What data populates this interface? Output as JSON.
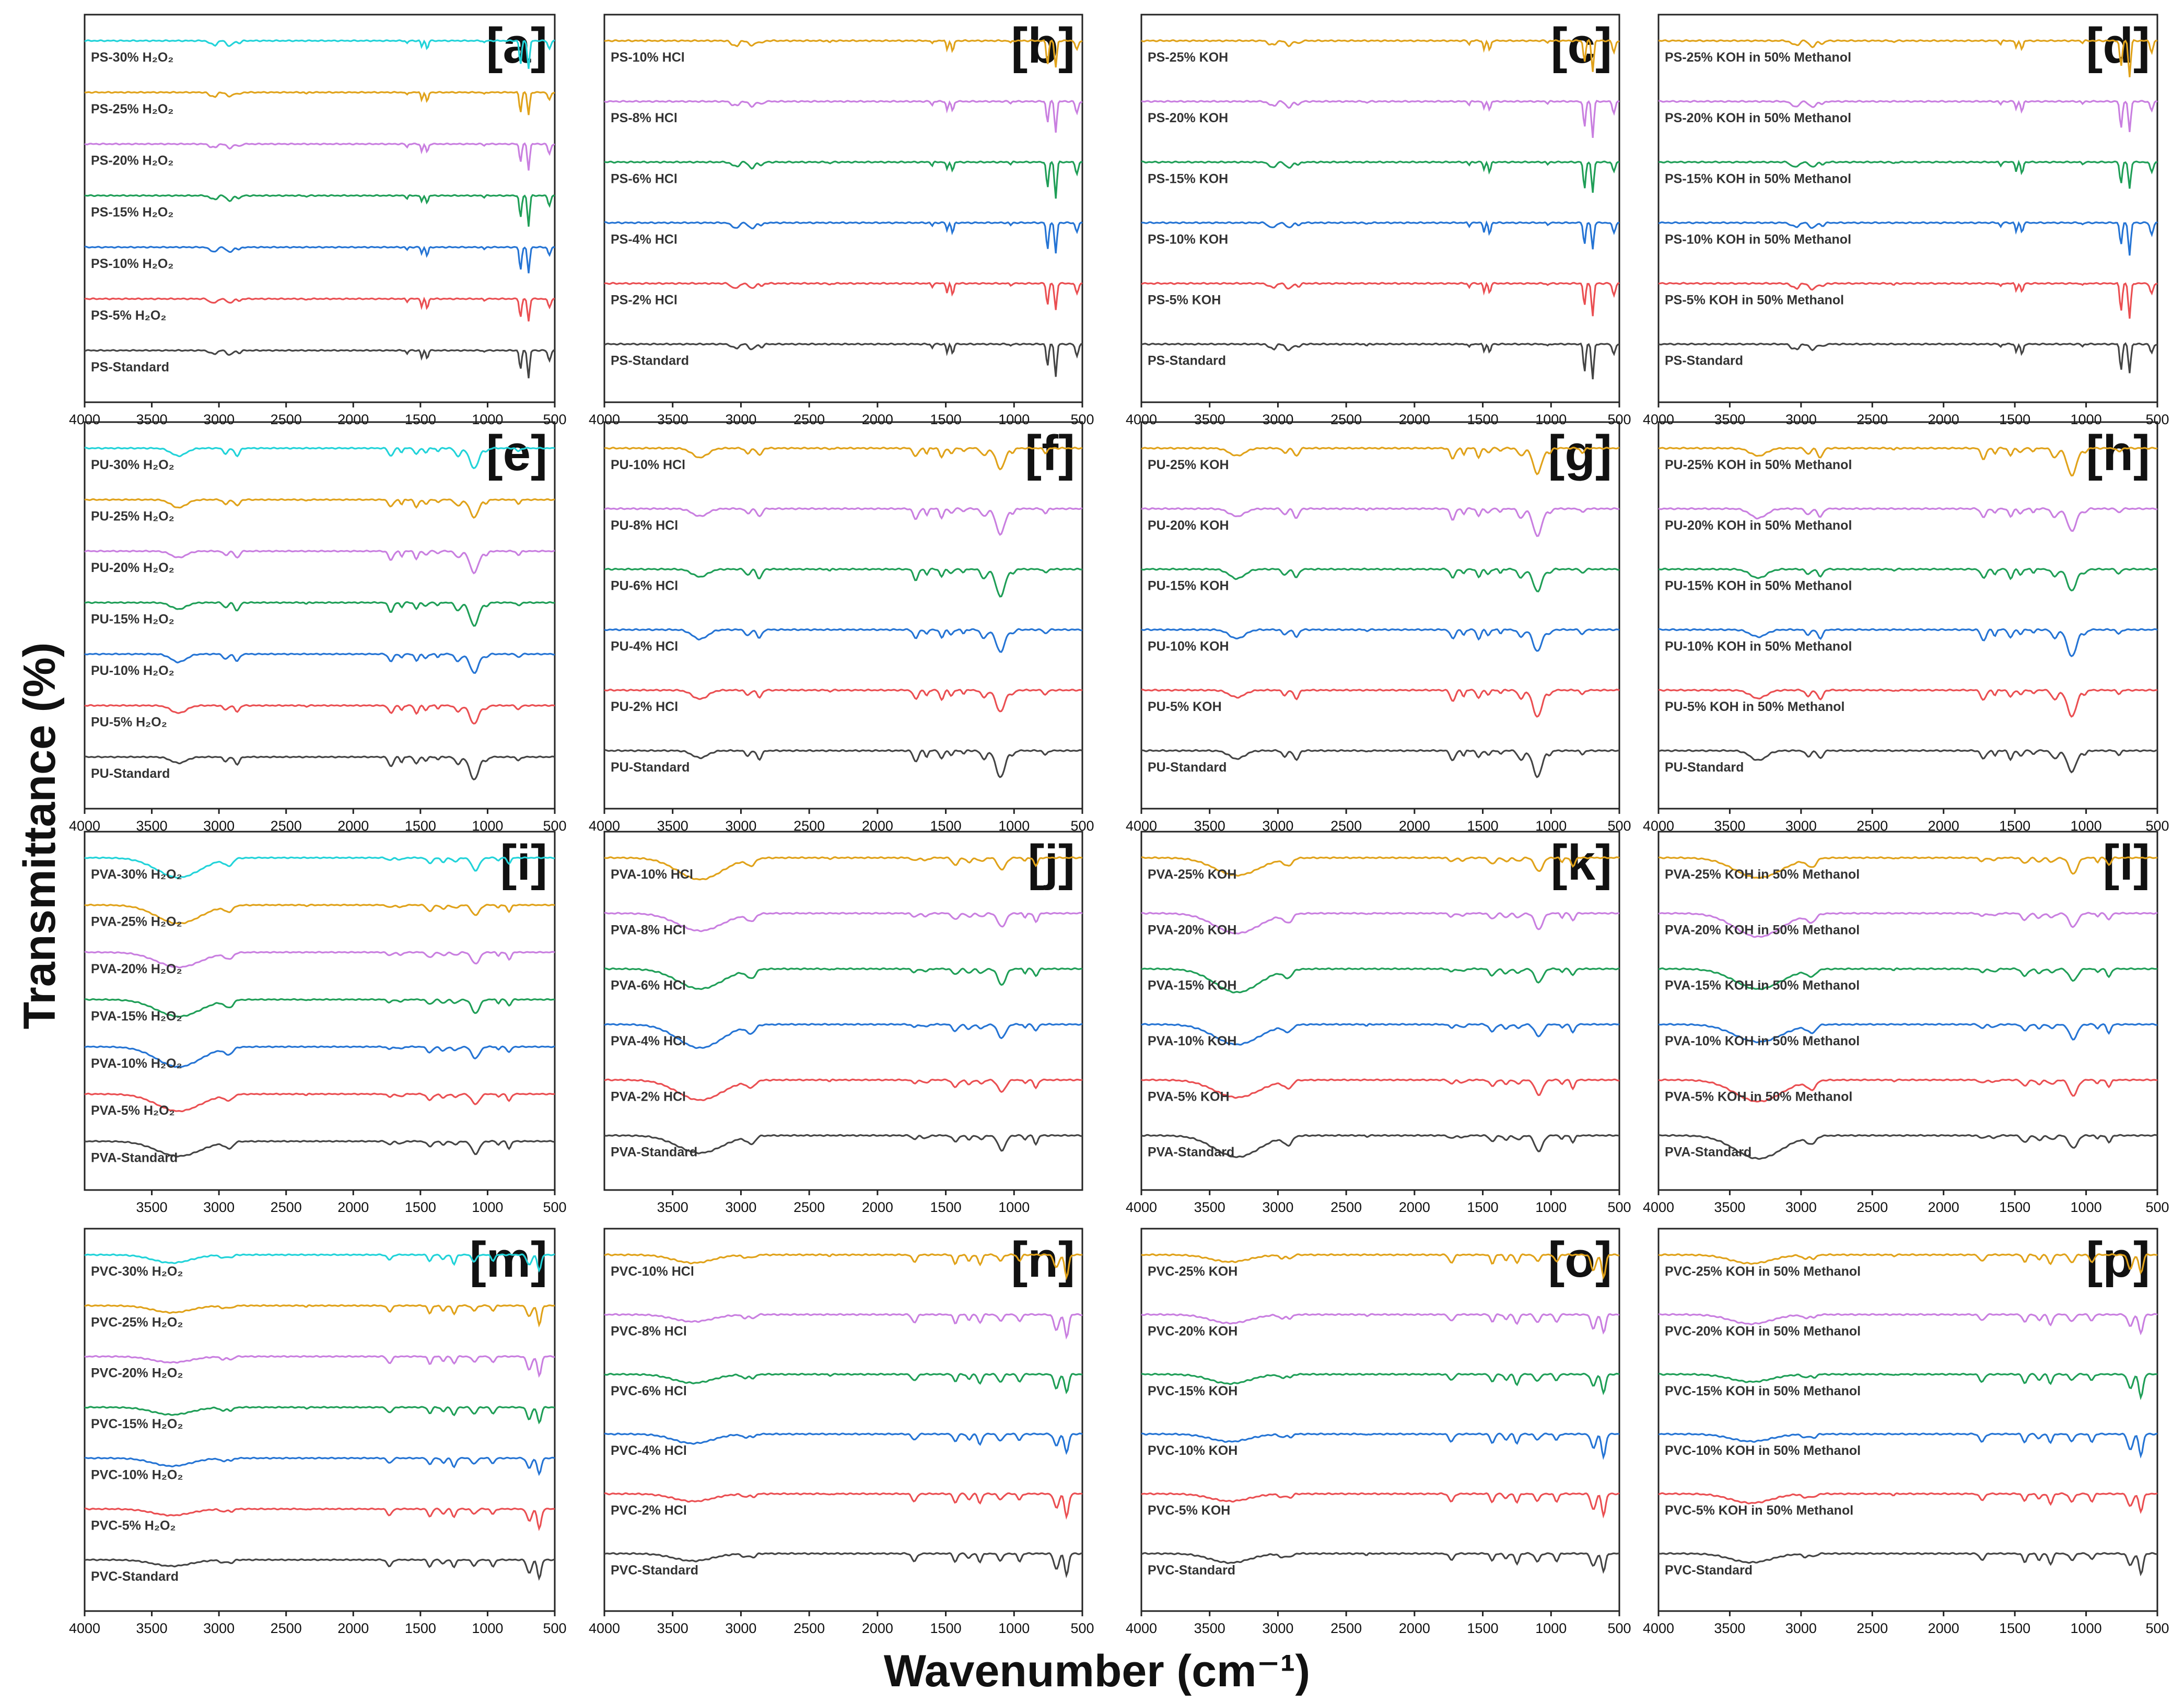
{
  "figure": {
    "y_axis_label": "Transmittance (%)",
    "x_axis_label": "Wavenumber (cm⁻¹)"
  },
  "colors": {
    "30": "#22d3d9",
    "25": "#e0a21a",
    "20": "#c97fe0",
    "15": "#1f9e57",
    "10": "#2574d4",
    "5": "#ea4f52",
    "std": "#444444"
  },
  "chart_data": [
    {
      "type": "line",
      "panel": "[a]",
      "polymer": "PS",
      "treatment": "H2O2",
      "xlim": [
        4000,
        500
      ],
      "x_ticks": [
        "4000",
        "3500",
        "3000",
        "2500",
        "2000",
        "1500",
        "1000",
        "500"
      ],
      "series": [
        {
          "name": "PS-30% H₂O₂",
          "key": "30"
        },
        {
          "name": "PS-25% H₂O₂",
          "key": "25"
        },
        {
          "name": "PS-20% H₂O₂",
          "key": "20"
        },
        {
          "name": "PS-15% H₂O₂",
          "key": "15"
        },
        {
          "name": "PS-10% H₂O₂",
          "key": "10"
        },
        {
          "name": "PS-5% H₂O₂",
          "key": "5"
        },
        {
          "name": "PS-Standard",
          "key": "std"
        }
      ]
    },
    {
      "type": "line",
      "panel": "[b]",
      "polymer": "PS",
      "treatment": "HCl",
      "xlim": [
        4000,
        500
      ],
      "x_ticks": [
        "4000",
        "3500",
        "3000",
        "2500",
        "2000",
        "1500",
        "1000",
        "500"
      ],
      "series": [
        {
          "name": "PS-10% HCl",
          "key": "25"
        },
        {
          "name": "PS-8% HCl",
          "key": "20"
        },
        {
          "name": "PS-6% HCl",
          "key": "15"
        },
        {
          "name": "PS-4% HCl",
          "key": "10"
        },
        {
          "name": "PS-2% HCl",
          "key": "5"
        },
        {
          "name": "PS-Standard",
          "key": "std"
        }
      ]
    },
    {
      "type": "line",
      "panel": "[c]",
      "polymer": "PS",
      "treatment": "KOH",
      "xlim": [
        4000,
        500
      ],
      "x_ticks": [
        "4000",
        "3500",
        "3000",
        "2500",
        "2000",
        "1500",
        "1000",
        "500"
      ],
      "series": [
        {
          "name": "PS-25% KOH",
          "key": "25"
        },
        {
          "name": "PS-20% KOH",
          "key": "20"
        },
        {
          "name": "PS-15% KOH",
          "key": "15"
        },
        {
          "name": "PS-10% KOH",
          "key": "10"
        },
        {
          "name": "PS-5% KOH",
          "key": "5"
        },
        {
          "name": "PS-Standard",
          "key": "std"
        }
      ]
    },
    {
      "type": "line",
      "panel": "[d]",
      "polymer": "PS",
      "treatment": "KOH-MeOH",
      "xlim": [
        4000,
        500
      ],
      "x_ticks": [
        "4000",
        "3500",
        "3000",
        "2500",
        "2000",
        "1500",
        "1000",
        "500"
      ],
      "series": [
        {
          "name": "PS-25% KOH in 50% Methanol",
          "key": "25"
        },
        {
          "name": "PS-20% KOH in 50% Methanol",
          "key": "20"
        },
        {
          "name": "PS-15% KOH in 50% Methanol",
          "key": "15"
        },
        {
          "name": "PS-10% KOH in 50% Methanol",
          "key": "10"
        },
        {
          "name": "PS-5% KOH in 50% Methanol",
          "key": "5"
        },
        {
          "name": "PS-Standard",
          "key": "std"
        }
      ]
    },
    {
      "type": "line",
      "panel": "[e]",
      "polymer": "PU",
      "treatment": "H2O2",
      "xlim": [
        4000,
        500
      ],
      "x_ticks": [
        "4000",
        "3500",
        "3000",
        "2500",
        "2000",
        "1500",
        "1000",
        "500"
      ],
      "series": [
        {
          "name": "PU-30% H₂O₂",
          "key": "30"
        },
        {
          "name": "PU-25% H₂O₂",
          "key": "25"
        },
        {
          "name": "PU-20% H₂O₂",
          "key": "20"
        },
        {
          "name": "PU-15% H₂O₂",
          "key": "15"
        },
        {
          "name": "PU-10% H₂O₂",
          "key": "10"
        },
        {
          "name": "PU-5% H₂O₂",
          "key": "5"
        },
        {
          "name": "PU-Standard",
          "key": "std"
        }
      ]
    },
    {
      "type": "line",
      "panel": "[f]",
      "polymer": "PU",
      "treatment": "HCl",
      "xlim": [
        4000,
        500
      ],
      "x_ticks": [
        "4000",
        "3500",
        "3000",
        "2500",
        "2000",
        "1500",
        "1000",
        "500"
      ],
      "series": [
        {
          "name": "PU-10% HCl",
          "key": "25"
        },
        {
          "name": "PU-8% HCl",
          "key": "20"
        },
        {
          "name": "PU-6% HCl",
          "key": "15"
        },
        {
          "name": "PU-4% HCl",
          "key": "10"
        },
        {
          "name": "PU-2% HCl",
          "key": "5"
        },
        {
          "name": "PU-Standard",
          "key": "std"
        }
      ]
    },
    {
      "type": "line",
      "panel": "[g]",
      "polymer": "PU",
      "treatment": "KOH",
      "xlim": [
        4000,
        500
      ],
      "x_ticks": [
        "4000",
        "3500",
        "3000",
        "2500",
        "2000",
        "1500",
        "1000",
        "500"
      ],
      "series": [
        {
          "name": "PU-25% KOH",
          "key": "25"
        },
        {
          "name": "PU-20% KOH",
          "key": "20"
        },
        {
          "name": "PU-15% KOH",
          "key": "15"
        },
        {
          "name": "PU-10% KOH",
          "key": "10"
        },
        {
          "name": "PU-5% KOH",
          "key": "5"
        },
        {
          "name": "PU-Standard",
          "key": "std"
        }
      ]
    },
    {
      "type": "line",
      "panel": "[h]",
      "polymer": "PU",
      "treatment": "KOH-MeOH",
      "xlim": [
        4000,
        500
      ],
      "x_ticks": [
        "4000",
        "3500",
        "3000",
        "2500",
        "2000",
        "1500",
        "1000",
        "500"
      ],
      "series": [
        {
          "name": "PU-25% KOH in 50% Methanol",
          "key": "25"
        },
        {
          "name": "PU-20% KOH in 50% Methanol",
          "key": "20"
        },
        {
          "name": "PU-15% KOH in 50% Methanol",
          "key": "15"
        },
        {
          "name": "PU-10% KOH in 50% Methanol",
          "key": "10"
        },
        {
          "name": "PU-5% KOH in 50% Methanol",
          "key": "5"
        },
        {
          "name": "PU-Standard",
          "key": "std"
        }
      ]
    },
    {
      "type": "line",
      "panel": "[i]",
      "polymer": "PVA",
      "treatment": "H2O2",
      "xlim": [
        4000,
        500
      ],
      "x_ticks": [
        "3500",
        "3000",
        "2500",
        "2000",
        "1500",
        "1000",
        "500"
      ],
      "series": [
        {
          "name": "PVA-30% H₂O₂",
          "key": "30"
        },
        {
          "name": "PVA-25% H₂O₂",
          "key": "25"
        },
        {
          "name": "PVA-20% H₂O₂",
          "key": "20"
        },
        {
          "name": "PVA-15% H₂O₂",
          "key": "15"
        },
        {
          "name": "PVA-10% H₂O₂",
          "key": "10"
        },
        {
          "name": "PVA-5% H₂O₂",
          "key": "5"
        },
        {
          "name": "PVA-Standard",
          "key": "std"
        }
      ]
    },
    {
      "type": "line",
      "panel": "[j]",
      "polymer": "PVA",
      "treatment": "HCl",
      "xlim": [
        4000,
        500
      ],
      "x_ticks": [
        "3500",
        "3000",
        "2500",
        "2000",
        "1500",
        "1000"
      ],
      "series": [
        {
          "name": "PVA-10% HCl",
          "key": "25"
        },
        {
          "name": "PVA-8% HCl",
          "key": "20"
        },
        {
          "name": "PVA-6% HCl",
          "key": "15"
        },
        {
          "name": "PVA-4% HCl",
          "key": "10"
        },
        {
          "name": "PVA-2% HCl",
          "key": "5"
        },
        {
          "name": "PVA-Standard",
          "key": "std"
        }
      ]
    },
    {
      "type": "line",
      "panel": "[k]",
      "polymer": "PVA",
      "treatment": "KOH",
      "xlim": [
        4000,
        500
      ],
      "x_ticks": [
        "4000",
        "3500",
        "3000",
        "2500",
        "2000",
        "1500",
        "1000",
        "500"
      ],
      "series": [
        {
          "name": "PVA-25% KOH",
          "key": "25"
        },
        {
          "name": "PVA-20% KOH",
          "key": "20"
        },
        {
          "name": "PVA-15% KOH",
          "key": "15"
        },
        {
          "name": "PVA-10% KOH",
          "key": "10"
        },
        {
          "name": "PVA-5% KOH",
          "key": "5"
        },
        {
          "name": "PVA-Standard",
          "key": "std"
        }
      ]
    },
    {
      "type": "line",
      "panel": "[l]",
      "polymer": "PVA",
      "treatment": "KOH-MeOH",
      "xlim": [
        4000,
        500
      ],
      "x_ticks": [
        "4000",
        "3500",
        "3000",
        "2500",
        "2000",
        "1500",
        "1000",
        "500"
      ],
      "series": [
        {
          "name": "PVA-25% KOH in 50% Methanol",
          "key": "25"
        },
        {
          "name": "PVA-20% KOH in 50% Methanol",
          "key": "20"
        },
        {
          "name": "PVA-15% KOH in 50% Methanol",
          "key": "15"
        },
        {
          "name": "PVA-10% KOH in 50% Methanol",
          "key": "10"
        },
        {
          "name": "PVA-5% KOH in 50% Methanol",
          "key": "5"
        },
        {
          "name": "PVA-Standard",
          "key": "std"
        }
      ]
    },
    {
      "type": "line",
      "panel": "[m]",
      "polymer": "PVC",
      "treatment": "H2O2",
      "xlim": [
        4000,
        500
      ],
      "x_ticks": [
        "4000",
        "3500",
        "3000",
        "2500",
        "2000",
        "1500",
        "1000",
        "500"
      ],
      "series": [
        {
          "name": "PVC-30% H₂O₂",
          "key": "30"
        },
        {
          "name": "PVC-25% H₂O₂",
          "key": "25"
        },
        {
          "name": "PVC-20% H₂O₂",
          "key": "20"
        },
        {
          "name": "PVC-15% H₂O₂",
          "key": "15"
        },
        {
          "name": "PVC-10% H₂O₂",
          "key": "10"
        },
        {
          "name": "PVC-5% H₂O₂",
          "key": "5"
        },
        {
          "name": "PVC-Standard",
          "key": "std"
        }
      ]
    },
    {
      "type": "line",
      "panel": "[n]",
      "polymer": "PVC",
      "treatment": "HCl",
      "xlim": [
        4000,
        500
      ],
      "x_ticks": [
        "4000",
        "3500",
        "3000",
        "2500",
        "2000",
        "1500",
        "1000",
        "500"
      ],
      "series": [
        {
          "name": "PVC-10% HCl",
          "key": "25"
        },
        {
          "name": "PVC-8% HCl",
          "key": "20"
        },
        {
          "name": "PVC-6% HCl",
          "key": "15"
        },
        {
          "name": "PVC-4% HCl",
          "key": "10"
        },
        {
          "name": "PVC-2% HCl",
          "key": "5"
        },
        {
          "name": "PVC-Standard",
          "key": "std"
        }
      ]
    },
    {
      "type": "line",
      "panel": "[o]",
      "polymer": "PVC",
      "treatment": "KOH",
      "xlim": [
        4000,
        500
      ],
      "x_ticks": [
        "4000",
        "3500",
        "3000",
        "2500",
        "2000",
        "1500",
        "1000",
        "500"
      ],
      "series": [
        {
          "name": "PVC-25% KOH",
          "key": "25"
        },
        {
          "name": "PVC-20% KOH",
          "key": "20"
        },
        {
          "name": "PVC-15% KOH",
          "key": "15"
        },
        {
          "name": "PVC-10% KOH",
          "key": "10"
        },
        {
          "name": "PVC-5% KOH",
          "key": "5"
        },
        {
          "name": "PVC-Standard",
          "key": "std"
        }
      ]
    },
    {
      "type": "line",
      "panel": "[p]",
      "polymer": "PVC",
      "treatment": "KOH-MeOH",
      "xlim": [
        4000,
        500
      ],
      "x_ticks": [
        "4000",
        "3500",
        "3000",
        "2500",
        "2000",
        "1500",
        "1000",
        "500"
      ],
      "series": [
        {
          "name": "PVC-25% KOH in 50% Methanol",
          "key": "25"
        },
        {
          "name": "PVC-20% KOH in 50% Methanol",
          "key": "20"
        },
        {
          "name": "PVC-15% KOH in 50% Methanol",
          "key": "15"
        },
        {
          "name": "PVC-10% KOH in 50% Methanol",
          "key": "10"
        },
        {
          "name": "PVC-5% KOH in 50% Methanol",
          "key": "5"
        },
        {
          "name": "PVC-Standard",
          "key": "std"
        }
      ]
    }
  ]
}
